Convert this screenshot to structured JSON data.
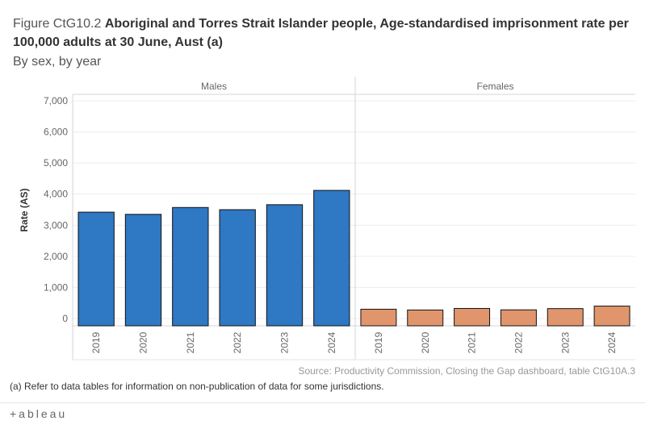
{
  "title": {
    "prefix": "Figure CtG10.2",
    "main_line1": "Aboriginal and Torres Strait Islander people, Age-standardised imprisonment rate per",
    "main_line2": "100,000 adults at 30 June, Aust (a)",
    "subtitle": "By sex, by year"
  },
  "chart_data": {
    "type": "bar",
    "ylabel": "Rate (AS)",
    "ylim": [
      0,
      7000
    ],
    "yticks": [
      0,
      1000,
      2000,
      3000,
      4000,
      5000,
      6000,
      7000
    ],
    "ytick_labels": [
      "0",
      "1,000",
      "2,000",
      "3,000",
      "4,000",
      "5,000",
      "6,000",
      "7,000"
    ],
    "grid": true,
    "panels": [
      {
        "name": "Males",
        "color": "#2e78c4",
        "categories": [
          "2019",
          "2020",
          "2021",
          "2022",
          "2023",
          "2024"
        ],
        "values": [
          3420,
          3350,
          3570,
          3500,
          3660,
          4120
        ]
      },
      {
        "name": "Females",
        "color": "#e0956c",
        "categories": [
          "2019",
          "2020",
          "2021",
          "2022",
          "2023",
          "2024"
        ],
        "values": [
          300,
          275,
          325,
          280,
          320,
          400
        ]
      }
    ]
  },
  "source": "Source: Productivity Commission, Closing the Gap dashboard, table CtG10A.3",
  "footnote": "(a) Refer to data tables for information on non-publication of data for some jurisdictions.",
  "footer": {
    "logo_text": "+ableau"
  }
}
